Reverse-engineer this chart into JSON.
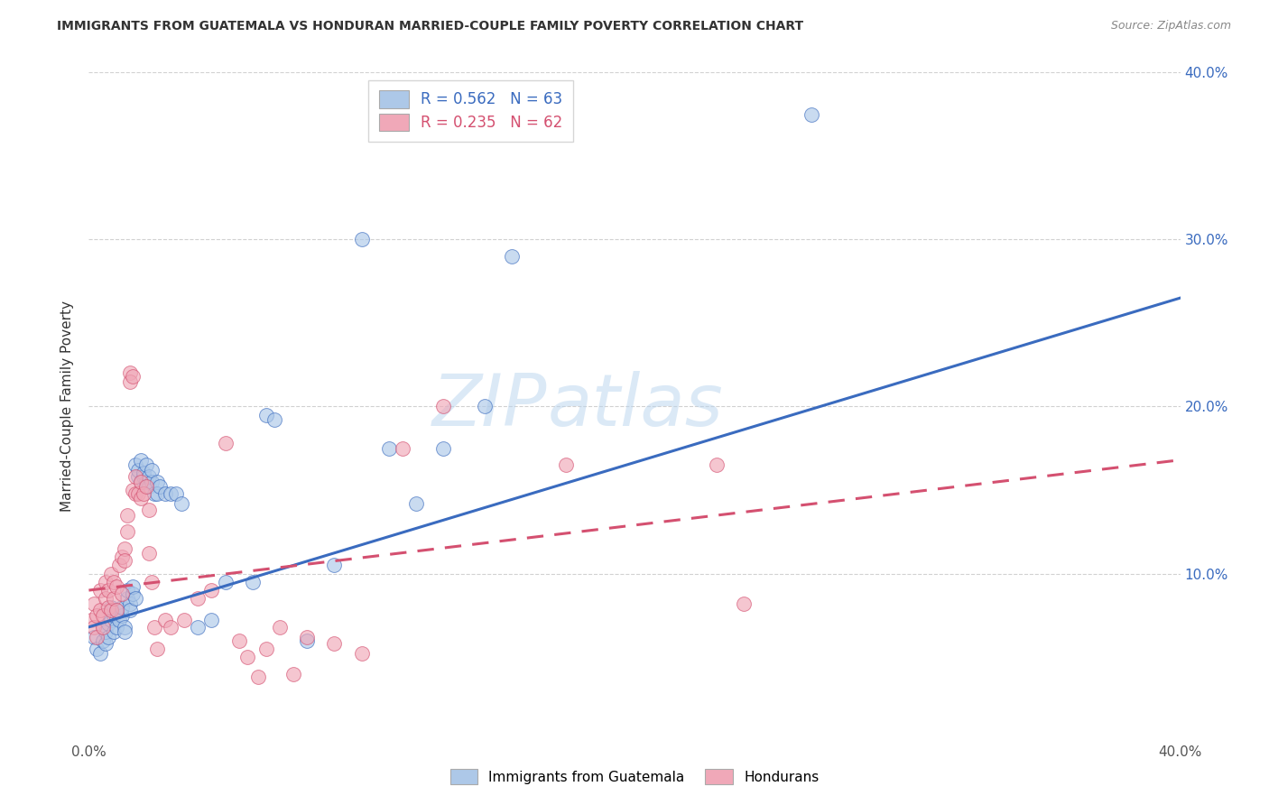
{
  "title": "IMMIGRANTS FROM GUATEMALA VS HONDURAN MARRIED-COUPLE FAMILY POVERTY CORRELATION CHART",
  "source": "Source: ZipAtlas.com",
  "ylabel": "Married-Couple Family Poverty",
  "legend_label_blue": "Immigrants from Guatemala",
  "legend_label_pink": "Hondurans",
  "r_blue": "0.562",
  "n_blue": "63",
  "r_pink": "0.235",
  "n_pink": "62",
  "xlim": [
    0.0,
    0.4
  ],
  "ylim": [
    0.0,
    0.4
  ],
  "xticks": [
    0.0,
    0.05,
    0.1,
    0.15,
    0.2,
    0.25,
    0.3,
    0.35,
    0.4
  ],
  "yticks": [
    0.0,
    0.05,
    0.1,
    0.15,
    0.2,
    0.25,
    0.3,
    0.35,
    0.4
  ],
  "color_blue": "#adc8e8",
  "color_blue_line": "#3a6bbf",
  "color_pink": "#f0a8b8",
  "color_pink_line": "#d45070",
  "watermark_zip": "ZIP",
  "watermark_atlas": "atlas",
  "background_color": "#ffffff",
  "grid_color": "#cccccc",
  "blue_line_x": [
    0.0,
    0.4
  ],
  "blue_line_y": [
    0.068,
    0.265
  ],
  "pink_line_x": [
    0.0,
    0.4
  ],
  "pink_line_y": [
    0.09,
    0.168
  ],
  "blue_scatter": [
    [
      0.002,
      0.062
    ],
    [
      0.003,
      0.055
    ],
    [
      0.004,
      0.052
    ],
    [
      0.005,
      0.06
    ],
    [
      0.005,
      0.068
    ],
    [
      0.006,
      0.058
    ],
    [
      0.006,
      0.065
    ],
    [
      0.007,
      0.07
    ],
    [
      0.007,
      0.062
    ],
    [
      0.008,
      0.072
    ],
    [
      0.008,
      0.08
    ],
    [
      0.009,
      0.065
    ],
    [
      0.009,
      0.075
    ],
    [
      0.01,
      0.068
    ],
    [
      0.01,
      0.078
    ],
    [
      0.011,
      0.072
    ],
    [
      0.012,
      0.075
    ],
    [
      0.012,
      0.08
    ],
    [
      0.013,
      0.068
    ],
    [
      0.013,
      0.065
    ],
    [
      0.014,
      0.085
    ],
    [
      0.014,
      0.09
    ],
    [
      0.015,
      0.082
    ],
    [
      0.015,
      0.078
    ],
    [
      0.016,
      0.088
    ],
    [
      0.016,
      0.092
    ],
    [
      0.017,
      0.085
    ],
    [
      0.017,
      0.165
    ],
    [
      0.018,
      0.158
    ],
    [
      0.018,
      0.162
    ],
    [
      0.019,
      0.168
    ],
    [
      0.019,
      0.155
    ],
    [
      0.02,
      0.158
    ],
    [
      0.02,
      0.16
    ],
    [
      0.021,
      0.155
    ],
    [
      0.021,
      0.165
    ],
    [
      0.022,
      0.152
    ],
    [
      0.022,
      0.158
    ],
    [
      0.023,
      0.155
    ],
    [
      0.023,
      0.162
    ],
    [
      0.024,
      0.148
    ],
    [
      0.025,
      0.155
    ],
    [
      0.025,
      0.148
    ],
    [
      0.026,
      0.152
    ],
    [
      0.028,
      0.148
    ],
    [
      0.03,
      0.148
    ],
    [
      0.032,
      0.148
    ],
    [
      0.034,
      0.142
    ],
    [
      0.04,
      0.068
    ],
    [
      0.045,
      0.072
    ],
    [
      0.05,
      0.095
    ],
    [
      0.06,
      0.095
    ],
    [
      0.065,
      0.195
    ],
    [
      0.068,
      0.192
    ],
    [
      0.08,
      0.06
    ],
    [
      0.09,
      0.105
    ],
    [
      0.1,
      0.3
    ],
    [
      0.11,
      0.175
    ],
    [
      0.12,
      0.142
    ],
    [
      0.13,
      0.175
    ],
    [
      0.145,
      0.2
    ],
    [
      0.155,
      0.29
    ],
    [
      0.265,
      0.375
    ]
  ],
  "pink_scatter": [
    [
      0.001,
      0.072
    ],
    [
      0.002,
      0.068
    ],
    [
      0.002,
      0.082
    ],
    [
      0.003,
      0.075
    ],
    [
      0.003,
      0.062
    ],
    [
      0.004,
      0.078
    ],
    [
      0.004,
      0.09
    ],
    [
      0.005,
      0.068
    ],
    [
      0.005,
      0.075
    ],
    [
      0.006,
      0.085
    ],
    [
      0.006,
      0.095
    ],
    [
      0.007,
      0.08
    ],
    [
      0.007,
      0.09
    ],
    [
      0.008,
      0.078
    ],
    [
      0.008,
      0.1
    ],
    [
      0.009,
      0.085
    ],
    [
      0.009,
      0.095
    ],
    [
      0.01,
      0.078
    ],
    [
      0.01,
      0.092
    ],
    [
      0.011,
      0.105
    ],
    [
      0.012,
      0.11
    ],
    [
      0.012,
      0.088
    ],
    [
      0.013,
      0.115
    ],
    [
      0.013,
      0.108
    ],
    [
      0.014,
      0.125
    ],
    [
      0.014,
      0.135
    ],
    [
      0.015,
      0.22
    ],
    [
      0.015,
      0.215
    ],
    [
      0.016,
      0.218
    ],
    [
      0.016,
      0.15
    ],
    [
      0.017,
      0.158
    ],
    [
      0.017,
      0.148
    ],
    [
      0.018,
      0.148
    ],
    [
      0.019,
      0.155
    ],
    [
      0.019,
      0.145
    ],
    [
      0.02,
      0.148
    ],
    [
      0.021,
      0.152
    ],
    [
      0.022,
      0.138
    ],
    [
      0.022,
      0.112
    ],
    [
      0.023,
      0.095
    ],
    [
      0.024,
      0.068
    ],
    [
      0.025,
      0.055
    ],
    [
      0.028,
      0.072
    ],
    [
      0.03,
      0.068
    ],
    [
      0.035,
      0.072
    ],
    [
      0.04,
      0.085
    ],
    [
      0.045,
      0.09
    ],
    [
      0.05,
      0.178
    ],
    [
      0.055,
      0.06
    ],
    [
      0.058,
      0.05
    ],
    [
      0.062,
      0.038
    ],
    [
      0.065,
      0.055
    ],
    [
      0.07,
      0.068
    ],
    [
      0.075,
      0.04
    ],
    [
      0.08,
      0.062
    ],
    [
      0.09,
      0.058
    ],
    [
      0.1,
      0.052
    ],
    [
      0.115,
      0.175
    ],
    [
      0.13,
      0.2
    ],
    [
      0.175,
      0.165
    ],
    [
      0.23,
      0.165
    ],
    [
      0.24,
      0.082
    ]
  ]
}
